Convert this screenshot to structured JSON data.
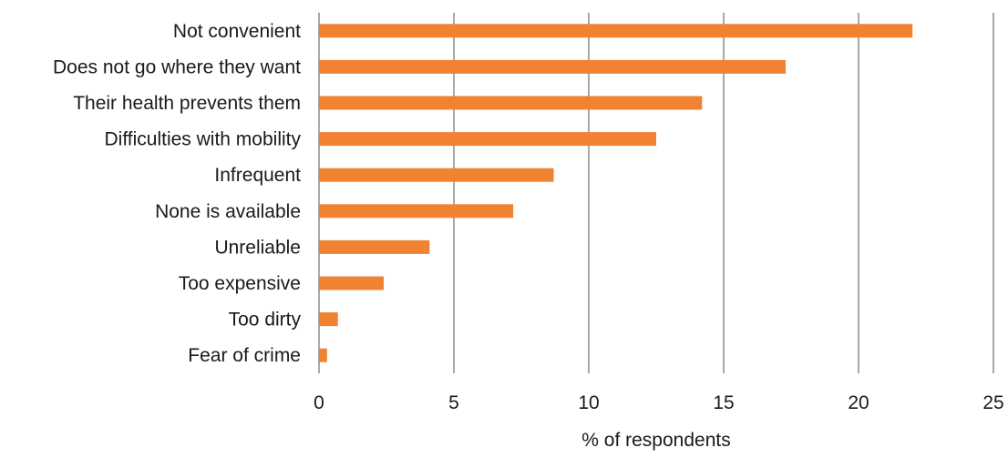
{
  "chart_data": {
    "type": "bar",
    "orientation": "horizontal",
    "categories": [
      "Not convenient",
      "Does not go where they want",
      "Their health prevents them",
      "Difficulties with mobility",
      "Infrequent",
      "None is available",
      "Unreliable",
      "Too expensive",
      "Too dirty",
      "Fear of crime"
    ],
    "values": [
      22.0,
      17.3,
      14.2,
      12.5,
      8.7,
      7.2,
      4.1,
      2.4,
      0.7,
      0.3
    ],
    "title": "",
    "xlabel": "% of respondents",
    "ylabel": "",
    "xlim": [
      0,
      25
    ],
    "xticks": [
      "0",
      "5",
      "10",
      "15",
      "20",
      "25"
    ],
    "grid": "vertical",
    "legend": "none",
    "colors": {
      "bar": "#f08232",
      "grid": "#8c8c8c",
      "text": "#1a1a1a"
    }
  }
}
